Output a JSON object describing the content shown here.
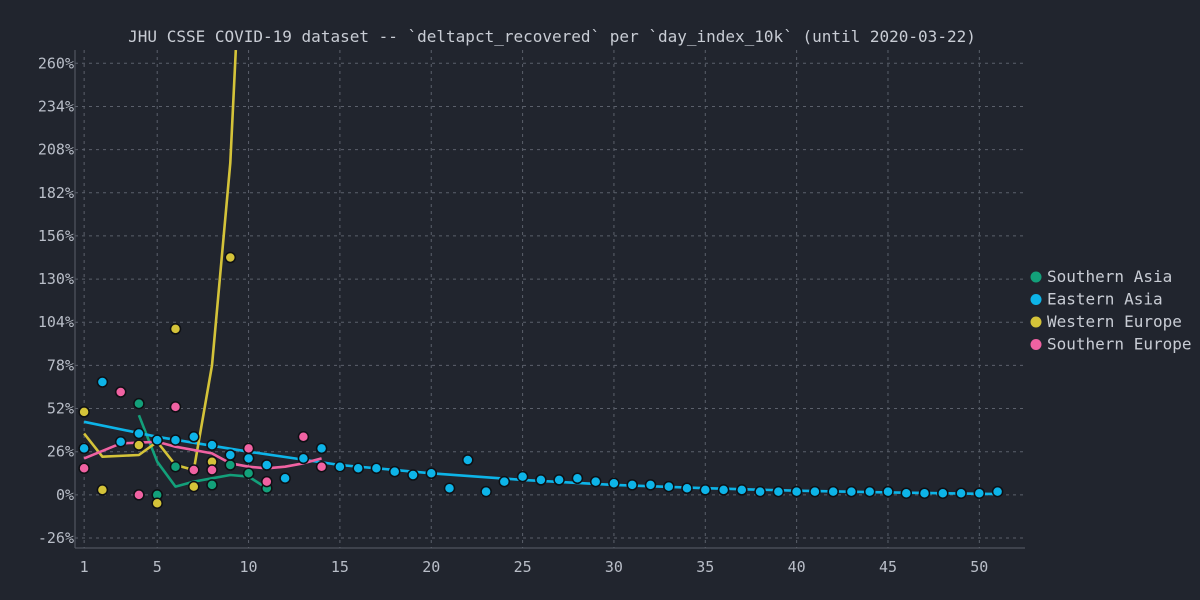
{
  "chart_data": {
    "type": "scatter",
    "title": "JHU CSSE COVID-19 dataset -- `deltapct_recovered` per `day_index_10k` (until 2020-03-22)",
    "xlabel": "",
    "ylabel": "",
    "xlim": [
      0.5,
      52.5
    ],
    "ylim": [
      -32,
      268
    ],
    "x_ticks": [
      1,
      5,
      10,
      15,
      20,
      25,
      30,
      35,
      40,
      45,
      50
    ],
    "y_ticks": [
      -26,
      0,
      26,
      52,
      78,
      104,
      130,
      156,
      182,
      208,
      234,
      260
    ],
    "y_tick_labels": [
      "-26%",
      "0%",
      "26%",
      "52%",
      "78%",
      "104%",
      "130%",
      "156%",
      "182%",
      "208%",
      "234%",
      "260%"
    ],
    "grid": true,
    "legend_position": "right",
    "series": [
      {
        "name": "Southern Asia",
        "color": "#13a07a",
        "points": [
          [
            4,
            55
          ],
          [
            5,
            0
          ],
          [
            6,
            17
          ],
          [
            8,
            6
          ],
          [
            9,
            18
          ],
          [
            10,
            13
          ],
          [
            11,
            4
          ]
        ],
        "trend": [
          [
            4,
            48
          ],
          [
            5,
            20
          ],
          [
            6,
            5
          ],
          [
            7,
            8
          ],
          [
            8,
            10
          ],
          [
            9,
            12
          ],
          [
            10,
            11
          ],
          [
            11,
            4
          ]
        ]
      },
      {
        "name": "Eastern Asia",
        "color": "#0db4e8",
        "points": [
          [
            1,
            28
          ],
          [
            2,
            68
          ],
          [
            3,
            32
          ],
          [
            4,
            37
          ],
          [
            5,
            33
          ],
          [
            6,
            33
          ],
          [
            7,
            35
          ],
          [
            8,
            30
          ],
          [
            9,
            24
          ],
          [
            10,
            22
          ],
          [
            11,
            18
          ],
          [
            12,
            10
          ],
          [
            13,
            22
          ],
          [
            14,
            28
          ],
          [
            15,
            17
          ],
          [
            16,
            16
          ],
          [
            17,
            16
          ],
          [
            18,
            14
          ],
          [
            19,
            12
          ],
          [
            20,
            13
          ],
          [
            21,
            4
          ],
          [
            22,
            21
          ],
          [
            23,
            2
          ],
          [
            24,
            8
          ],
          [
            25,
            11
          ],
          [
            26,
            9
          ],
          [
            27,
            9
          ],
          [
            28,
            10
          ],
          [
            29,
            8
          ],
          [
            30,
            7
          ],
          [
            31,
            6
          ],
          [
            32,
            6
          ],
          [
            33,
            5
          ],
          [
            34,
            4
          ],
          [
            35,
            3
          ],
          [
            36,
            3
          ],
          [
            37,
            3
          ],
          [
            38,
            2
          ],
          [
            39,
            2
          ],
          [
            40,
            2
          ],
          [
            41,
            2
          ],
          [
            42,
            2
          ],
          [
            43,
            2
          ],
          [
            44,
            2
          ],
          [
            45,
            2
          ],
          [
            46,
            1
          ],
          [
            47,
            1
          ],
          [
            48,
            1
          ],
          [
            49,
            1
          ],
          [
            50,
            1
          ],
          [
            51,
            2
          ]
        ],
        "trend": [
          [
            1,
            44
          ],
          [
            5,
            35
          ],
          [
            10,
            26
          ],
          [
            15,
            18
          ],
          [
            20,
            13
          ],
          [
            25,
            9
          ],
          [
            30,
            6
          ],
          [
            35,
            4
          ],
          [
            40,
            2.5
          ],
          [
            45,
            1.5
          ],
          [
            51,
            0.5
          ]
        ]
      },
      {
        "name": "Western Europe",
        "color": "#d4c339",
        "points": [
          [
            1,
            50
          ],
          [
            2,
            3
          ],
          [
            4,
            30
          ],
          [
            5,
            -5
          ],
          [
            6,
            100
          ],
          [
            7,
            5
          ],
          [
            8,
            20
          ],
          [
            9,
            143
          ]
        ],
        "trend": [
          [
            1,
            37
          ],
          [
            2,
            23
          ],
          [
            4,
            24
          ],
          [
            5,
            32
          ],
          [
            6,
            18
          ],
          [
            7,
            15
          ],
          [
            8,
            78
          ],
          [
            9,
            200
          ],
          [
            9.3,
            268
          ]
        ]
      },
      {
        "name": "Southern Europe",
        "color": "#f062a2",
        "points": [
          [
            1,
            16
          ],
          [
            3,
            62
          ],
          [
            4,
            0
          ],
          [
            6,
            53
          ],
          [
            7,
            15
          ],
          [
            8,
            15
          ],
          [
            10,
            28
          ],
          [
            11,
            8
          ],
          [
            13,
            35
          ],
          [
            14,
            17
          ]
        ],
        "trend": [
          [
            1,
            22
          ],
          [
            3,
            31
          ],
          [
            5,
            32
          ],
          [
            6,
            29
          ],
          [
            8,
            25
          ],
          [
            9,
            19
          ],
          [
            10,
            17
          ],
          [
            11,
            16
          ],
          [
            12,
            17
          ],
          [
            13,
            19
          ],
          [
            14,
            22
          ]
        ]
      }
    ]
  }
}
